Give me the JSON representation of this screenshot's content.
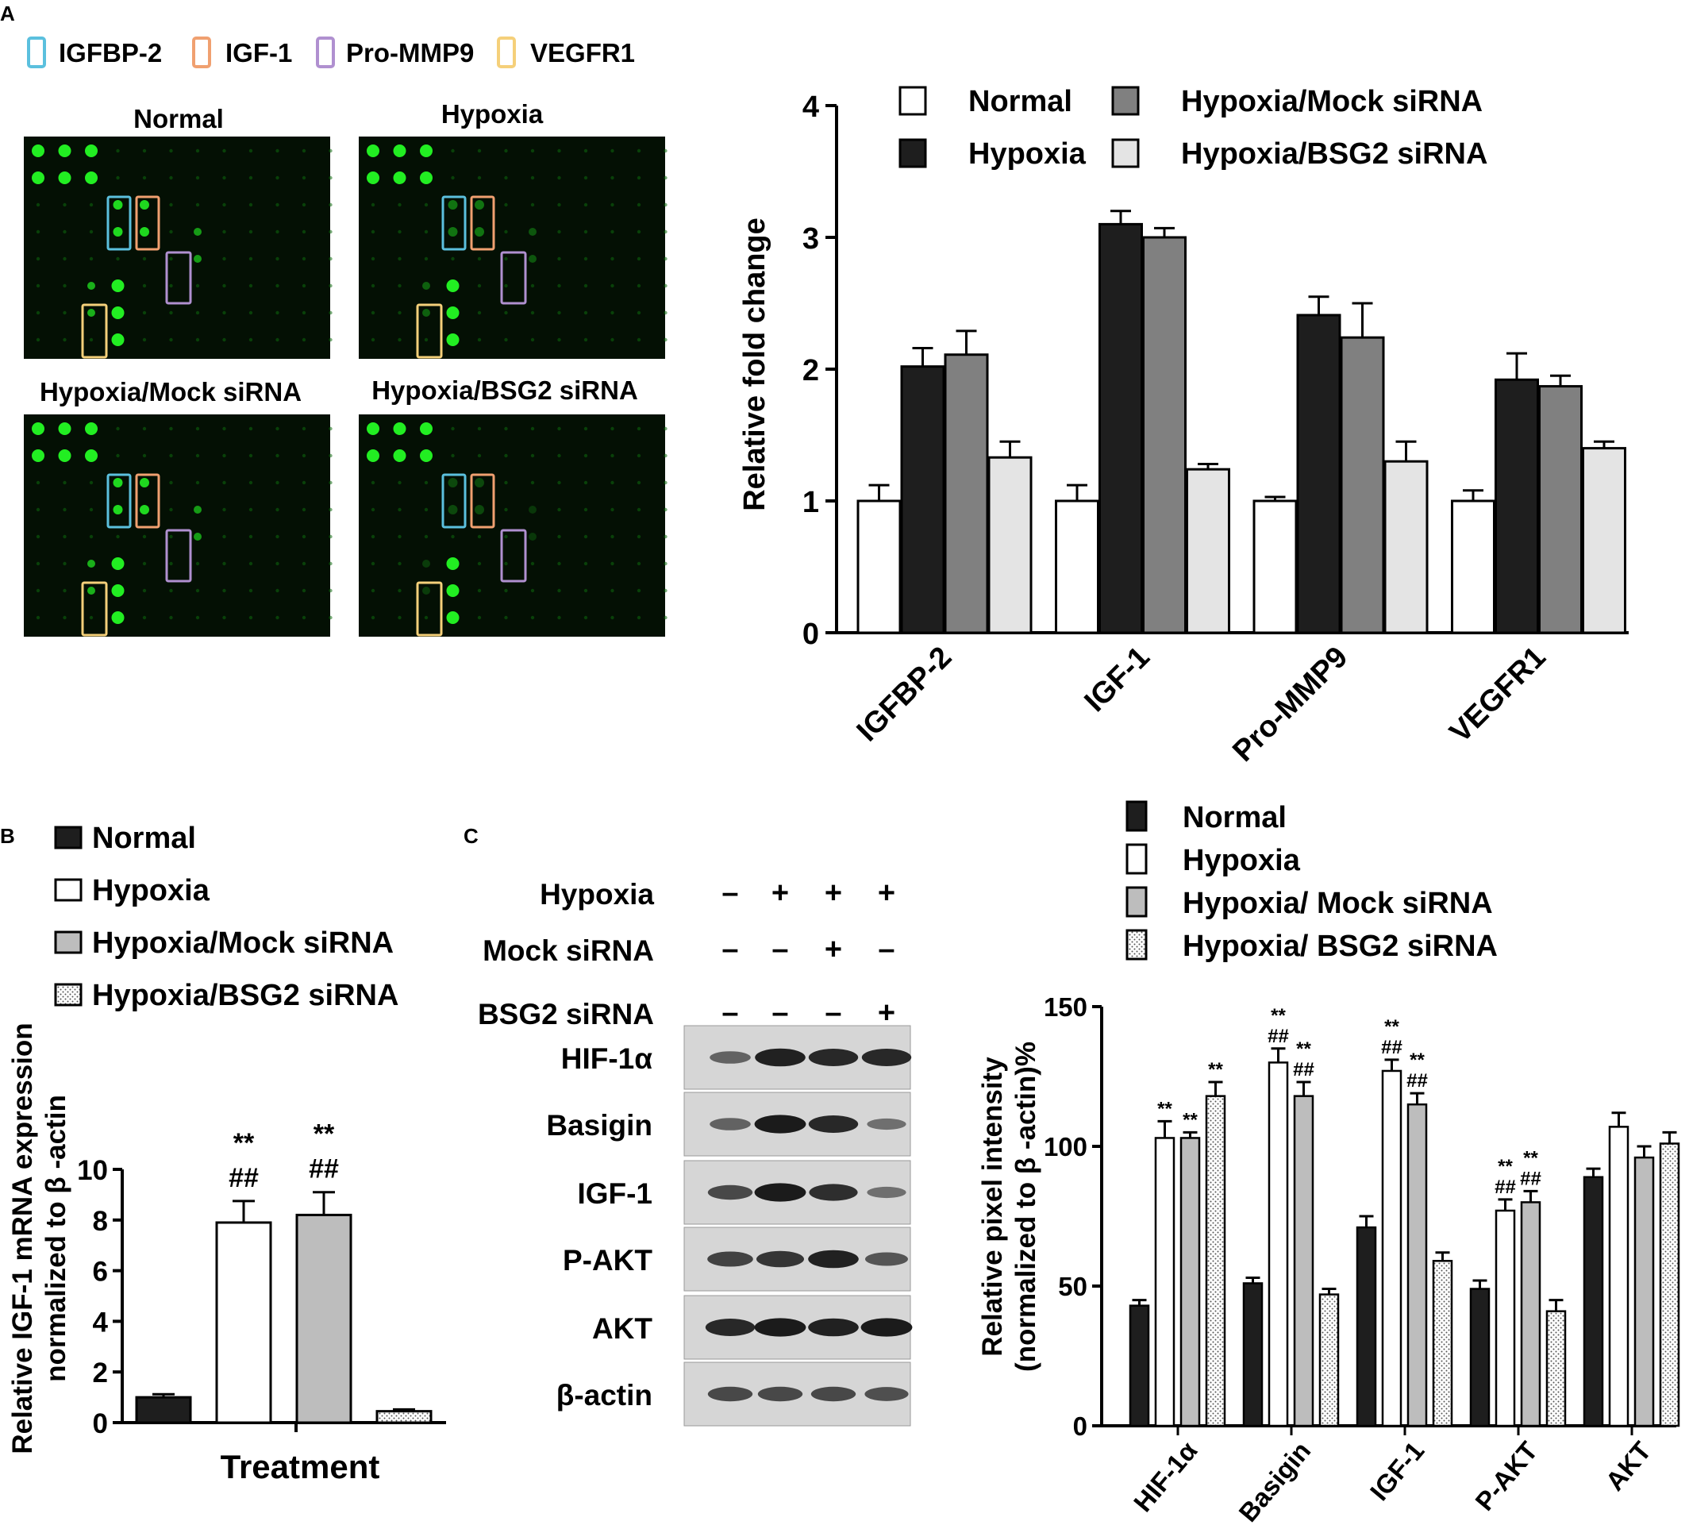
{
  "panel_labels": {
    "a": "A",
    "b": "B",
    "c": "C"
  },
  "colors": {
    "blot_bg": "#041004",
    "spot": "#22ee22",
    "box_igfbp2": "#5bc0de",
    "box_igf1": "#f0a070",
    "box_prommp9": "#b090d0",
    "box_vegfr1": "#f5d07a",
    "black": "#1e1e1e",
    "dark_gray": "#808080",
    "light_gray": "#e4e4e4",
    "mid_gray": "#bdbdbd",
    "white": "#ffffff"
  },
  "array_legend": [
    {
      "label": "IGFBP-2",
      "color": "#5bc0de"
    },
    {
      "label": "IGF-1",
      "color": "#f0a070"
    },
    {
      "label": "Pro-MMP9",
      "color": "#b090d0"
    },
    {
      "label": "VEGFR1",
      "color": "#f5d07a"
    }
  ],
  "array_titles": [
    "Normal",
    "Hypoxia",
    "Hypoxia/Mock siRNA",
    "Hypoxia/BSG2 siRNA"
  ],
  "blot_table": {
    "row_labels": [
      "Hypoxia",
      "Mock siRNA",
      "BSG2 siRNA"
    ],
    "rows": [
      [
        "–",
        "+",
        "+",
        "+"
      ],
      [
        "–",
        "–",
        "+",
        "–"
      ],
      [
        "–",
        "–",
        "–",
        "+"
      ]
    ],
    "bands": [
      "HIF-1α",
      "Basigin",
      "IGF-1",
      "P-AKT",
      "AKT",
      "β-actin"
    ],
    "band_intensity": [
      [
        0.4,
        0.9,
        0.85,
        0.85
      ],
      [
        0.4,
        0.95,
        0.85,
        0.3
      ],
      [
        0.6,
        0.95,
        0.8,
        0.3
      ],
      [
        0.65,
        0.75,
        0.9,
        0.5
      ],
      [
        0.85,
        0.95,
        0.9,
        0.95
      ],
      [
        0.6,
        0.6,
        0.6,
        0.55
      ]
    ]
  },
  "chart_data": [
    {
      "type": "bar",
      "title": "",
      "xlabel": "",
      "ylabel": "Relative fold change",
      "ylim": [
        0,
        4
      ],
      "yticks": [
        "0",
        "1",
        "2",
        "3",
        "4"
      ],
      "categories": [
        "IGFBP-2",
        "IGF-1",
        "Pro-MMP9",
        "VEGFR1"
      ],
      "legend_position": "top",
      "series": [
        {
          "name": "Normal",
          "color": "#ffffff",
          "values": [
            1.0,
            1.0,
            1.0,
            1.0
          ],
          "errors": [
            0.12,
            0.12,
            0.03,
            0.08
          ]
        },
        {
          "name": "Hypoxia",
          "color": "#1e1e1e",
          "values": [
            2.02,
            3.1,
            2.41,
            1.92
          ],
          "errors": [
            0.14,
            0.1,
            0.14,
            0.2
          ]
        },
        {
          "name": "Hypoxia/Mock siRNA",
          "color": "#808080",
          "values": [
            2.11,
            3.0,
            2.24,
            1.87
          ],
          "errors": [
            0.18,
            0.07,
            0.26,
            0.08
          ]
        },
        {
          "name": "Hypoxia/BSG2 siRNA",
          "color": "#e4e4e4",
          "values": [
            1.33,
            1.24,
            1.3,
            1.4
          ],
          "errors": [
            0.12,
            0.04,
            0.15,
            0.05
          ]
        }
      ]
    },
    {
      "type": "bar",
      "title": "",
      "xlabel": "Treatment",
      "ylabel": "Relative IGF-1 mRNA expression normalized to β -actin",
      "ylabel_lines": [
        "Relative IGF-1 mRNA expression",
        "normalized to β -actin"
      ],
      "ylim": [
        0,
        10
      ],
      "yticks": [
        "0",
        "2",
        "4",
        "6",
        "8",
        "10"
      ],
      "legend_position": "top-left",
      "series": [
        {
          "name": "Normal",
          "color": "#1e1e1e",
          "pattern": "solid",
          "value": 1.0,
          "error": 0.12,
          "annotation": []
        },
        {
          "name": "Hypoxia",
          "color": "#ffffff",
          "pattern": "solid",
          "value": 7.9,
          "error": 0.85,
          "annotation": [
            "**",
            "##"
          ]
        },
        {
          "name": "Hypoxia/Mock siRNA",
          "color": "#bdbdbd",
          "pattern": "solid",
          "value": 8.2,
          "error": 0.9,
          "annotation": [
            "**",
            "##"
          ]
        },
        {
          "name": "Hypoxia/BSG2 siRNA",
          "color": "#ffffff",
          "pattern": "dots",
          "value": 0.45,
          "error": 0.07,
          "annotation": []
        }
      ]
    },
    {
      "type": "bar",
      "title": "",
      "xlabel": "",
      "ylabel": "Relative pixel intensity (normalized to β -actin)%",
      "ylabel_lines": [
        "Relative pixel intensity",
        "(normalized to β -actin)%"
      ],
      "ylim": [
        0,
        150
      ],
      "yticks": [
        "0",
        "50",
        "100",
        "150"
      ],
      "categories": [
        "HIF-1α",
        "Basigin",
        "IGF-1",
        "P-AKT",
        "AKT"
      ],
      "legend_position": "top",
      "series": [
        {
          "name": "Normal",
          "color": "#1e1e1e",
          "pattern": "solid",
          "values": [
            43,
            51,
            71,
            49,
            89
          ],
          "errors": [
            2,
            2,
            4,
            3,
            3
          ],
          "annotations": [
            [],
            [],
            [],
            [],
            []
          ]
        },
        {
          "name": "Hypoxia",
          "color": "#ffffff",
          "pattern": "solid",
          "values": [
            103,
            130,
            127,
            77,
            107
          ],
          "errors": [
            6,
            5,
            4,
            4,
            5
          ],
          "annotations": [
            [
              "**"
            ],
            [
              "**",
              "##"
            ],
            [
              "**",
              "##"
            ],
            [
              "**",
              "##"
            ],
            []
          ]
        },
        {
          "name": "Hypoxia/ Mock siRNA",
          "color": "#bdbdbd",
          "pattern": "solid",
          "values": [
            103,
            118,
            115,
            80,
            96
          ],
          "errors": [
            2,
            5,
            4,
            4,
            4
          ],
          "annotations": [
            [
              "**"
            ],
            [
              "**",
              "##"
            ],
            [
              "**",
              "##"
            ],
            [
              "**",
              "##"
            ],
            []
          ]
        },
        {
          "name": "Hypoxia/ BSG2 siRNA",
          "color": "#ffffff",
          "pattern": "dots",
          "values": [
            118,
            47,
            59,
            41,
            101
          ],
          "errors": [
            5,
            2,
            3,
            4,
            4
          ],
          "annotations": [
            [
              "**"
            ],
            [],
            [],
            [],
            []
          ]
        }
      ]
    }
  ]
}
